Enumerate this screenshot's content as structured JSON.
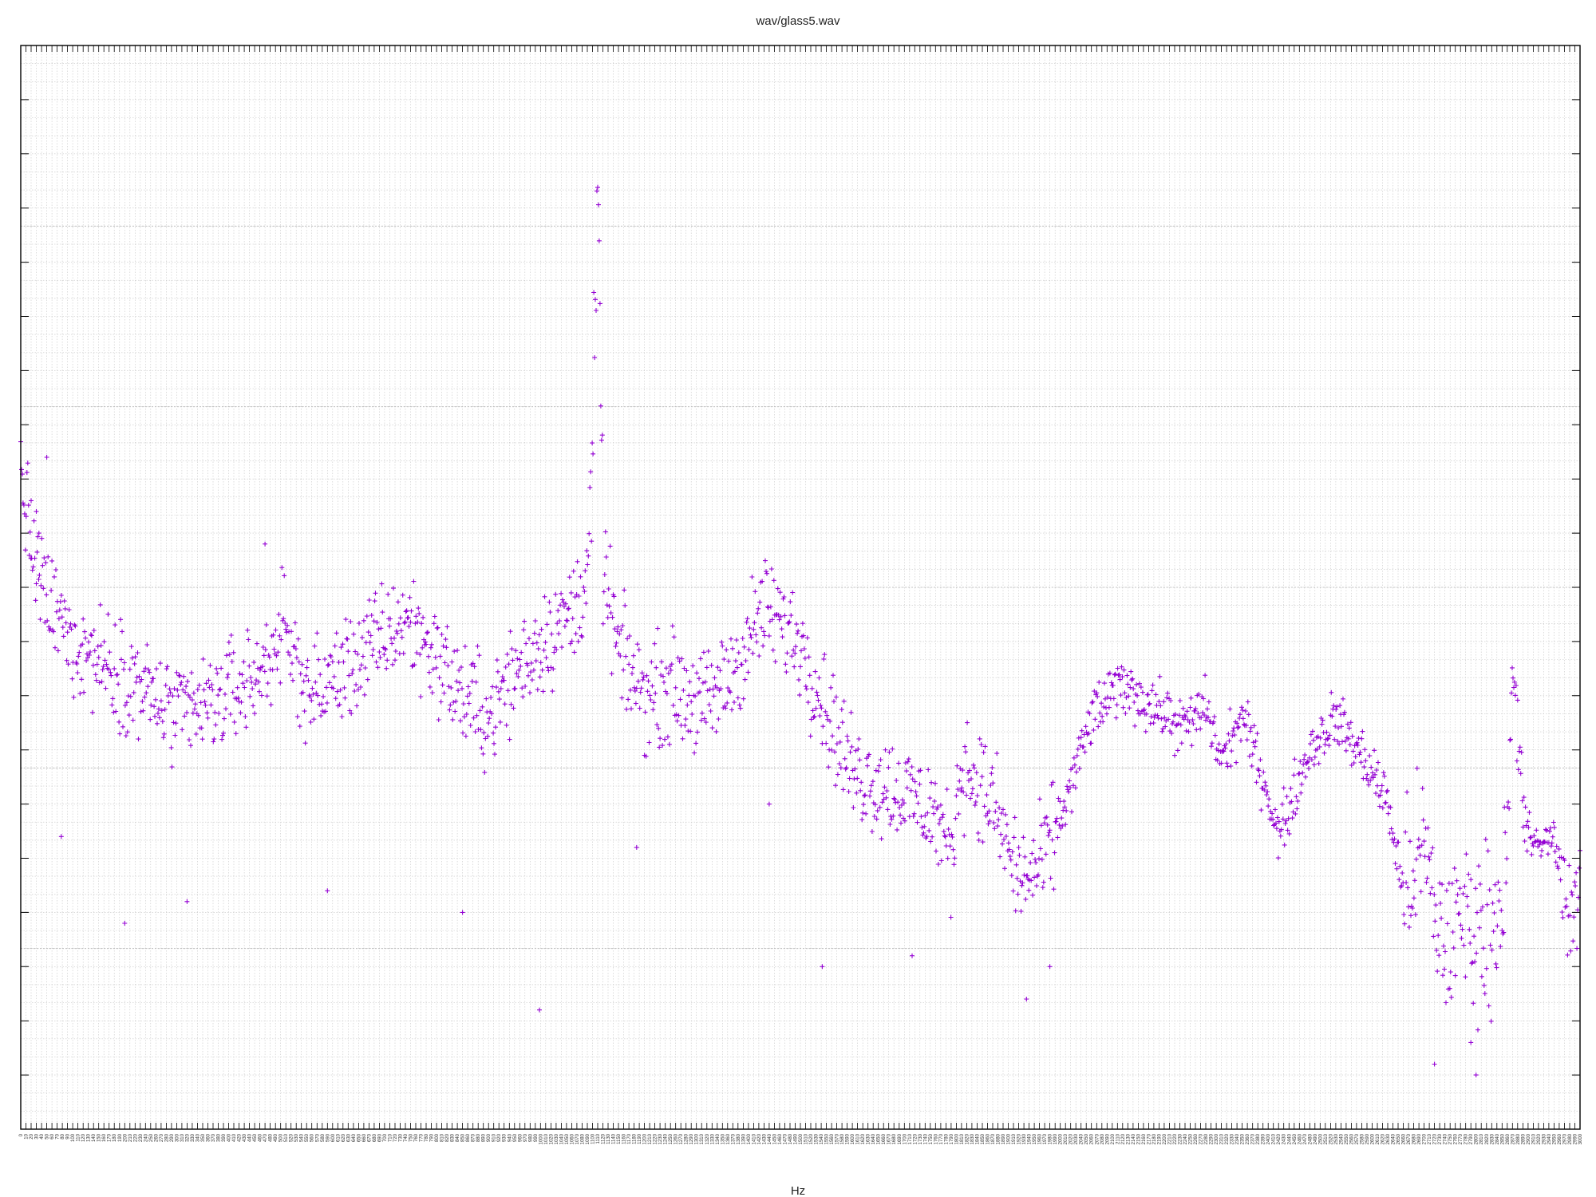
{
  "chart_data": {
    "type": "scatter",
    "title": "wav/glass5.wav",
    "xlabel": "Hz",
    "ylabel": "",
    "marker": "+",
    "grid": true,
    "legend": "none",
    "color": "#9400d3",
    "xlim": [
      0,
      3000
    ],
    "ylim": [
      0,
      100
    ],
    "x_tick_step": 10,
    "x_label_step": 10,
    "key_points": [
      [
        0,
        61
      ],
      [
        10,
        57
      ],
      [
        30,
        51
      ],
      [
        60,
        48
      ],
      [
        100,
        45
      ],
      [
        200,
        42
      ],
      [
        300,
        38
      ],
      [
        360,
        39
      ],
      [
        460,
        42
      ],
      [
        500,
        46
      ],
      [
        560,
        40
      ],
      [
        640,
        43
      ],
      [
        740,
        47
      ],
      [
        780,
        45
      ],
      [
        850,
        40
      ],
      [
        900,
        38
      ],
      [
        950,
        42
      ],
      [
        1000,
        45
      ],
      [
        1070,
        48
      ],
      [
        1090,
        52
      ],
      [
        1100,
        60
      ],
      [
        1105,
        75
      ],
      [
        1110,
        84
      ],
      [
        1115,
        73
      ],
      [
        1120,
        52
      ],
      [
        1150,
        44
      ],
      [
        1200,
        40
      ],
      [
        1250,
        41
      ],
      [
        1320,
        39
      ],
      [
        1380,
        43
      ],
      [
        1430,
        48
      ],
      [
        1500,
        45
      ],
      [
        1540,
        40
      ],
      [
        1600,
        33
      ],
      [
        1700,
        31
      ],
      [
        1760,
        29
      ],
      [
        1790,
        25
      ],
      [
        1810,
        34
      ],
      [
        1870,
        30
      ],
      [
        1920,
        23
      ],
      [
        1960,
        24
      ],
      [
        2010,
        30
      ],
      [
        2060,
        38
      ],
      [
        2120,
        41
      ],
      [
        2180,
        39
      ],
      [
        2240,
        37
      ],
      [
        2280,
        39
      ],
      [
        2310,
        34
      ],
      [
        2350,
        38
      ],
      [
        2400,
        31
      ],
      [
        2420,
        27
      ],
      [
        2480,
        35
      ],
      [
        2530,
        38
      ],
      [
        2600,
        33
      ],
      [
        2630,
        30
      ],
      [
        2660,
        22
      ],
      [
        2700,
        26
      ],
      [
        2720,
        20
      ],
      [
        2740,
        17
      ],
      [
        2780,
        20
      ],
      [
        2810,
        18
      ],
      [
        2840,
        20
      ],
      [
        2860,
        25
      ],
      [
        2870,
        42
      ],
      [
        2890,
        30
      ],
      [
        2910,
        26
      ],
      [
        2950,
        27
      ],
      [
        2980,
        20
      ],
      [
        3000,
        20
      ]
    ],
    "outliers": [
      [
        20,
        58
      ],
      [
        30,
        57
      ],
      [
        35,
        55
      ],
      [
        50,
        62
      ],
      [
        78,
        27
      ],
      [
        200,
        19
      ],
      [
        320,
        21
      ],
      [
        470,
        54
      ],
      [
        590,
        22
      ],
      [
        850,
        20
      ],
      [
        998,
        11
      ],
      [
        1185,
        26
      ],
      [
        1440,
        30
      ],
      [
        1542,
        15
      ],
      [
        1715,
        16
      ],
      [
        1935,
        12
      ],
      [
        1980,
        15
      ],
      [
        2720,
        6
      ],
      [
        2790,
        8
      ],
      [
        2800,
        5
      ]
    ]
  }
}
